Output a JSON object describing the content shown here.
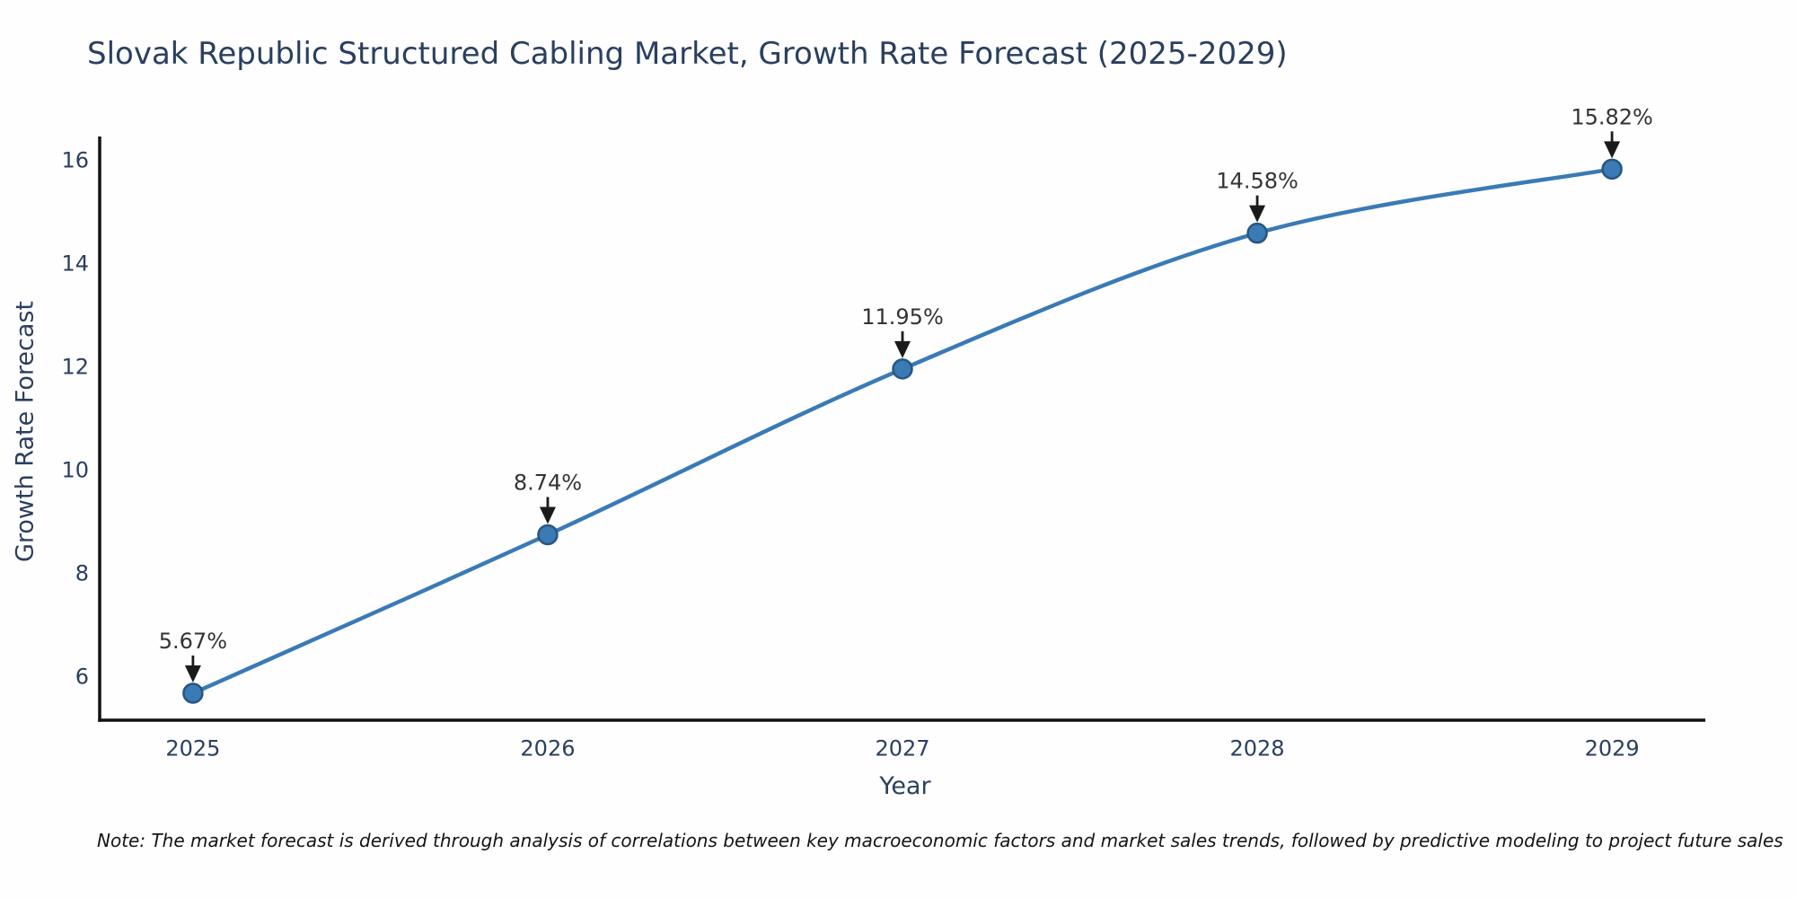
{
  "chart_data": {
    "type": "line",
    "title": "Slovak Republic Structured Cabling Market, Growth Rate Forecast (2025-2029)",
    "xlabel": "Year",
    "ylabel": "Growth Rate Forecast",
    "x": [
      2025,
      2026,
      2027,
      2028,
      2029
    ],
    "series": [
      {
        "name": "Growth Rate Forecast",
        "values": [
          5.67,
          8.74,
          11.95,
          14.58,
          15.82
        ],
        "point_labels": [
          "5.67%",
          "8.74%",
          "11.95%",
          "14.58%",
          "15.82%"
        ]
      }
    ],
    "yticks": [
      6,
      8,
      10,
      12,
      14,
      16
    ],
    "xticks": [
      2025,
      2026,
      2027,
      2028,
      2029
    ],
    "xlim": [
      2024.737,
      2029.263
    ],
    "ylim": [
      5.148,
      16.452
    ],
    "grid": false,
    "legend": false,
    "line_shape": "spline",
    "colors": {
      "line": "#3a7ab5",
      "marker_fill": "#3a7ab5",
      "marker_edge": "#27567f",
      "axis": "#111111",
      "tick_label": "#2a3f5f",
      "title": "#2a3f5f",
      "annotation_text": "#333333",
      "annotation_arrow": "#1a1a1a"
    }
  },
  "note": {
    "text": "Note: The market forecast is derived through analysis of correlations between key macroeconomic factors and market sales trends, followed by predictive modeling to project future sales"
  }
}
